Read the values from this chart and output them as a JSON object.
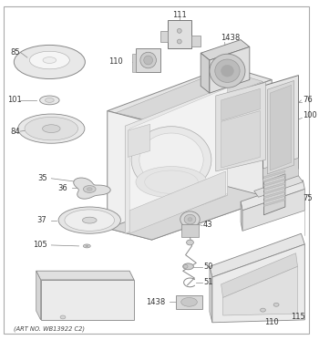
{
  "footer": "(ART NO. WB13922 C2)",
  "background_color": "#ffffff",
  "fig_width": 3.5,
  "fig_height": 3.73,
  "dpi": 100
}
